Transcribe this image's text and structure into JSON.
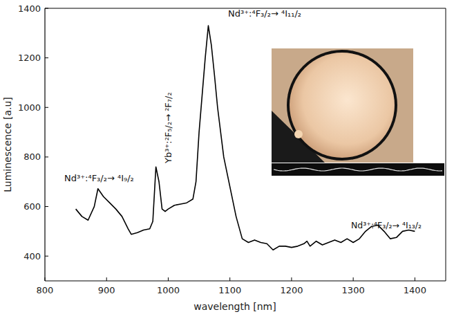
{
  "chart_data": {
    "type": "line",
    "x_label": "wavelength [nm]",
    "y_label": "Luminescence [a.u]",
    "x": [
      850,
      860,
      870,
      880,
      886,
      895,
      905,
      915,
      925,
      935,
      940,
      950,
      960,
      970,
      975,
      980,
      985,
      990,
      995,
      1000,
      1010,
      1020,
      1030,
      1040,
      1045,
      1050,
      1055,
      1060,
      1065,
      1070,
      1075,
      1080,
      1090,
      1100,
      1110,
      1120,
      1130,
      1140,
      1150,
      1160,
      1170,
      1180,
      1190,
      1200,
      1210,
      1220,
      1225,
      1230,
      1240,
      1250,
      1260,
      1270,
      1280,
      1290,
      1300,
      1310,
      1320,
      1330,
      1340,
      1350,
      1360,
      1370,
      1380,
      1390,
      1400
    ],
    "series": [
      {
        "color": "#000000",
        "line_style": "solid",
        "values": [
          590,
          560,
          545,
          600,
          672,
          640,
          615,
          590,
          560,
          510,
          488,
          495,
          505,
          510,
          540,
          760,
          700,
          590,
          580,
          590,
          605,
          610,
          615,
          630,
          700,
          900,
          1050,
          1200,
          1330,
          1250,
          1130,
          1000,
          800,
          680,
          560,
          470,
          455,
          465,
          455,
          450,
          425,
          440,
          440,
          435,
          440,
          450,
          460,
          440,
          460,
          445,
          455,
          465,
          455,
          470,
          455,
          470,
          500,
          520,
          525,
          500,
          470,
          475,
          500,
          505,
          500
        ]
      }
    ],
    "xlim": [
      800,
      1450
    ],
    "ylim": [
      300,
      1400
    ],
    "xticks": [
      800,
      900,
      1000,
      1100,
      1200,
      1300,
      1400
    ],
    "yticks": [
      400,
      600,
      800,
      1000,
      1200,
      1400
    ],
    "grid": false,
    "annotations": [
      "Nd³⁺:⁴F₃/₂→ ⁴I₉/₂",
      "Yb³⁺:²F₅/₂→ ²F₇/₂",
      "Nd³⁺:⁴F₃/₂→ ⁴I₁₁/₂",
      "Nd³⁺:⁴F₃/₂→ ⁴I₁₃/₂"
    ]
  }
}
